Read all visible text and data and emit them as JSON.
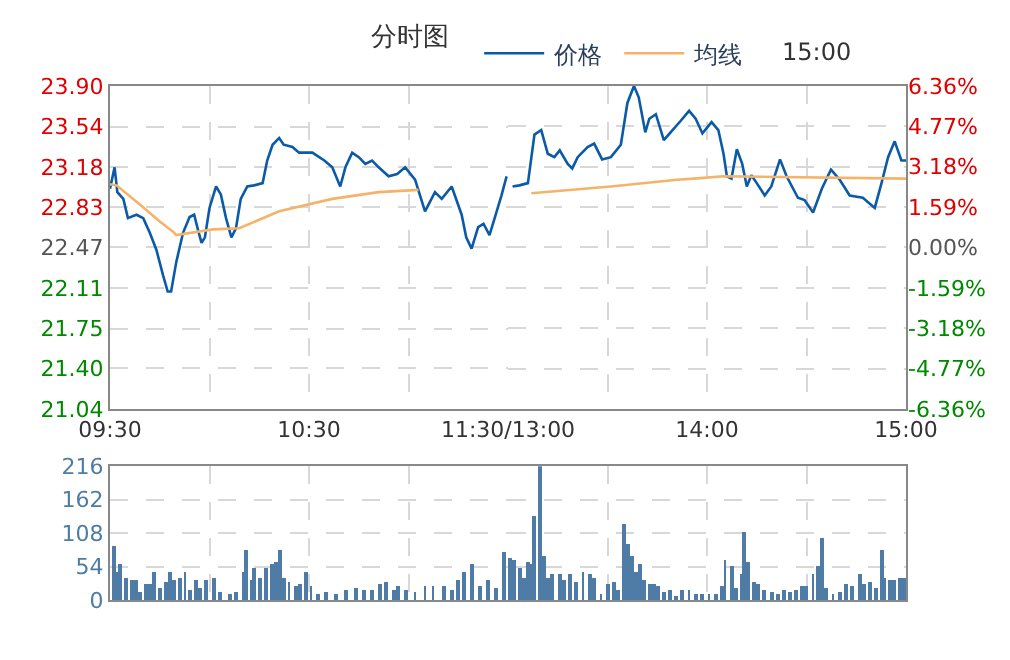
{
  "chart_data": [
    {
      "type": "line",
      "title": "分时图",
      "annotations": [
        "15:00"
      ],
      "legend": "top",
      "grid": true,
      "xlim": [
        9.5,
        11.5
      ],
      "xticks": [
        {
          "value": 9.5,
          "label": "09:30"
        },
        {
          "value": 10,
          "label": null
        },
        {
          "value": 10.5,
          "label": "10:30"
        },
        {
          "value": 11,
          "label": null
        },
        {
          "value": 11.5,
          "label": "11:30/13:00"
        }
      ],
      "ylim": [
        21.04,
        23.9
      ],
      "yticks": [
        21.04,
        {
          "value": 21.4,
          "label": "21.40"
        },
        21.75,
        22.11,
        22.47,
        22.83,
        23.18,
        23.54,
        {
          "value": 23.9,
          "label": "23.90"
        }
      ],
      "series": [
        {
          "name": "价格",
          "color": "#0b5aa8",
          "x": [
            9.5,
            9.523,
            9.537,
            9.567,
            9.59,
            9.633,
            9.667,
            9.7,
            9.733,
            9.767,
            9.79,
            9.807,
            9.833,
            9.867,
            9.9,
            9.923,
            9.943,
            9.96,
            9.977,
            10,
            10.033,
            10.057,
            10.083,
            10.11,
            10.133,
            10.157,
            10.19,
            10.223,
            10.267,
            10.29,
            10.317,
            10.35,
            10.373,
            10.417,
            10.45,
            10.517,
            10.577,
            10.617,
            10.657,
            10.683,
            10.717,
            10.75,
            10.783,
            10.817,
            10.85,
            10.9,
            10.943,
            10.983,
            11.033,
            11.083,
            11.133,
            11.167,
            11.217,
            11.267,
            11.29,
            11.317,
            11.35,
            11.377,
            11.407,
            11.433,
            11.467,
            11.493
          ],
          "values": [
            22.99,
            23.18,
            22.96,
            22.9,
            22.73,
            22.76,
            22.73,
            22.6,
            22.45,
            22.22,
            22.08,
            22.08,
            22.34,
            22.6,
            22.74,
            22.76,
            22.62,
            22.51,
            22.56,
            22.82,
            23.01,
            22.94,
            22.73,
            22.56,
            22.64,
            22.9,
            23.01,
            23.02,
            23.04,
            23.24,
            23.38,
            23.44,
            23.38,
            23.36,
            23.31,
            23.31,
            23.24,
            23.18,
            23.01,
            23.18,
            23.31,
            23.27,
            23.21,
            23.24,
            23.18,
            23.1,
            23.12,
            23.18,
            23.07,
            22.79,
            22.96,
            22.9,
            23.01,
            22.76,
            22.56,
            22.46,
            22.65,
            22.68,
            22.58,
            22.73,
            22.93,
            23.1
          ]
        },
        {
          "name": "均线",
          "color": "#f5b36a",
          "x": [
            9.5,
            9.533,
            9.65,
            9.75,
            9.817,
            9.833,
            10.017,
            10.15,
            10.35,
            10.617,
            10.85,
            11.05
          ],
          "values": [
            23.03,
            23.02,
            22.85,
            22.7,
            22.61,
            22.58,
            22.63,
            22.64,
            22.79,
            22.9,
            22.96,
            22.98
          ]
        }
      ]
    },
    {
      "type": "line",
      "grid": true,
      "xlim": [
        13,
        15
      ],
      "xticks": [
        {
          "value": 13.5,
          "label": null
        },
        {
          "value": 14,
          "label": "14:00"
        },
        {
          "value": 14.5,
          "label": null
        },
        {
          "value": 15,
          "label": "15:00"
        }
      ],
      "ylim": [
        21.04,
        23.9
      ],
      "y2lim": [
        -6.36,
        6.36
      ],
      "y2ticks": [
        {
          "value": -6.36,
          "label": "-6.36%"
        },
        {
          "value": -4.77,
          "label": "-4.77%"
        },
        {
          "value": -3.18,
          "label": "-3.18%"
        },
        {
          "value": -1.59,
          "label": "-1.59%"
        },
        {
          "value": 0,
          "label": "0.00%"
        },
        {
          "value": 1.59,
          "label": "1.59%"
        },
        {
          "value": 3.18,
          "label": "3.18%"
        },
        {
          "value": 4.77,
          "label": "4.77%"
        },
        {
          "value": 6.36,
          "label": "6.36%"
        }
      ],
      "series": [
        {
          "color": "#0b5aa8",
          "x": [
            13.023,
            13.057,
            13.1,
            13.133,
            13.167,
            13.2,
            13.233,
            13.26,
            13.3,
            13.323,
            13.35,
            13.4,
            13.433,
            13.473,
            13.517,
            13.567,
            13.6,
            13.633,
            13.657,
            13.69,
            13.71,
            13.743,
            13.783,
            13.817,
            13.867,
            13.91,
            13.943,
            13.977,
            14.023,
            14.057,
            14.083,
            14.1,
            14.123,
            14.15,
            14.177,
            14.2,
            14.223,
            14.25,
            14.29,
            14.323,
            14.367,
            14.4,
            14.457,
            14.49,
            14.533,
            14.577,
            14.623,
            14.667,
            14.717,
            14.783,
            14.843,
            14.877,
            14.91,
            14.943,
            14.977,
            15
          ],
          "values": [
            23.01,
            23.02,
            23.04,
            23.47,
            23.51,
            23.3,
            23.27,
            23.33,
            23.21,
            23.17,
            23.27,
            23.36,
            23.39,
            23.25,
            23.27,
            23.38,
            23.75,
            23.9,
            23.8,
            23.49,
            23.61,
            23.65,
            23.42,
            23.49,
            23.59,
            23.68,
            23.61,
            23.48,
            23.58,
            23.51,
            23.3,
            23.1,
            23.08,
            23.34,
            23.21,
            23.01,
            23.11,
            23.04,
            22.93,
            23.01,
            23.25,
            23.1,
            22.91,
            22.89,
            22.78,
            22.99,
            23.16,
            23.07,
            22.93,
            22.91,
            22.82,
            23.04,
            23.27,
            23.41,
            23.24,
            23.24
          ]
        },
        {
          "color": "#f5b36a",
          "x": [
            13.117,
            13.517,
            13.85,
            13.933,
            14.083,
            15
          ],
          "values": [
            22.95,
            23.01,
            23.07,
            23.08,
            23.1,
            23.08
          ]
        }
      ]
    },
    {
      "type": "bar",
      "grid": true,
      "tick_labels": "y",
      "color": "#4f7ca6",
      "xlim": [
        9.5,
        11.5
      ],
      "xticks": [
        9.5,
        10,
        10.5,
        11,
        11.5
      ],
      "ylim": [
        0,
        216
      ],
      "yticks": [
        0,
        54,
        108,
        162,
        216
      ],
      "x": [
        9.517,
        9.533,
        9.55,
        9.583,
        9.61,
        9.633,
        9.65,
        9.677,
        9.7,
        9.723,
        9.75,
        9.777,
        9.8,
        9.823,
        9.85,
        9.877,
        9.9,
        9.933,
        9.95,
        9.983,
        10.023,
        10.05,
        10.1,
        10.133,
        10.177,
        10.183,
        10.21,
        10.227,
        10.257,
        10.283,
        10.31,
        10.333,
        10.35,
        10.377,
        10.4,
        10.433,
        10.457,
        10.483,
        10.51,
        10.543,
        10.583,
        10.633,
        10.683,
        10.733,
        10.777,
        10.817,
        10.857,
        10.883,
        10.923,
        10.95,
        10.99,
        11.033,
        11.083,
        11.123,
        11.177,
        11.217,
        11.25,
        11.283,
        11.323,
        11.357,
        11.403,
        11.443,
        11.483
      ],
      "values": [
        88,
        46,
        59,
        36,
        33,
        31,
        12,
        26,
        26,
        46,
        18,
        29,
        46,
        31,
        36,
        45,
        15,
        31,
        18,
        31,
        34,
        12,
        10,
        13,
        46,
        80,
        33,
        51,
        36,
        51,
        57,
        62,
        80,
        36,
        29,
        23,
        26,
        46,
        23,
        10,
        12,
        10,
        15,
        18,
        15,
        15,
        26,
        29,
        15,
        23,
        15,
        12,
        23,
        23,
        23,
        15,
        31,
        46,
        57,
        23,
        31,
        18,
        77
      ]
    },
    {
      "type": "bar",
      "grid": true,
      "tick_labels": false,
      "color": "#4f7ca6",
      "xlim": [
        13,
        15
      ],
      "xticks": [
        13.5,
        14,
        14.5,
        15
      ],
      "ylim": [
        0,
        216
      ],
      "yticks": [
        0,
        54,
        108,
        162,
        216
      ],
      "x": [
        13.013,
        13.033,
        13.057,
        13.077,
        13.1,
        13.117,
        13.133,
        13.157,
        13.177,
        13.2,
        13.223,
        13.257,
        13.283,
        13.31,
        13.343,
        13.377,
        13.41,
        13.433,
        13.467,
        13.5,
        13.533,
        13.557,
        13.583,
        13.6,
        13.623,
        13.643,
        13.667,
        13.683,
        13.71,
        13.733,
        13.757,
        13.783,
        13.81,
        13.843,
        13.877,
        13.91,
        13.943,
        13.977,
        14.01,
        14.043,
        14.077,
        14.09,
        14.123,
        14.15,
        14.177,
        14.19,
        14.207,
        14.233,
        14.257,
        14.29,
        14.323,
        14.357,
        14.383,
        14.417,
        14.45,
        14.477,
        14.5,
        14.533,
        14.557,
        14.577,
        14.597,
        14.633,
        14.667,
        14.7,
        14.733,
        14.767,
        14.79,
        14.817,
        14.85,
        14.877,
        14.89,
        14.917,
        14.943,
        14.97,
        14.99
      ],
      "values": [
        67,
        64,
        51,
        36,
        62,
        57,
        134,
        216,
        70,
        36,
        41,
        43,
        31,
        41,
        29,
        46,
        41,
        36,
        10,
        26,
        29,
        15,
        122,
        91,
        72,
        46,
        57,
        31,
        26,
        26,
        23,
        12,
        15,
        5,
        15,
        15,
        8,
        8,
        8,
        8,
        23,
        64,
        54,
        18,
        43,
        108,
        62,
        29,
        26,
        15,
        12,
        8,
        15,
        12,
        15,
        23,
        21,
        41,
        54,
        101,
        18,
        8,
        12,
        26,
        21,
        43,
        26,
        29,
        18,
        80,
        36,
        33,
        31,
        36,
        36
      ]
    }
  ]
}
